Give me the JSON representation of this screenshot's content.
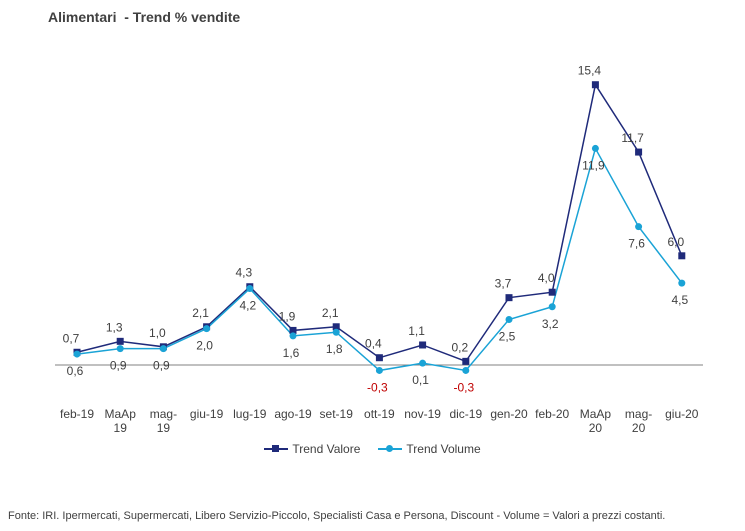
{
  "title": "Alimentari  - Trend % vendite",
  "footer": "Fonte: IRI. Ipermercati, Supermercati, Libero Servizio-Piccolo,  Specialisti Casa e Persona, Discount -  Volume =  Valori a prezzi  costanti.",
  "colors": {
    "valore": "#1f2a7a",
    "volume": "#1aa3d6",
    "negative": "#c00000",
    "text": "#404040",
    "axis": "#808080"
  },
  "chart_data": {
    "type": "line",
    "categories": [
      "feb-19",
      "MaAp 19",
      "mag-19",
      "giu-19",
      "lug-19",
      "ago-19",
      "set-19",
      "ott-19",
      "nov-19",
      "dic-19",
      "gen-20",
      "feb-20",
      "MaAp 20",
      "mag-20",
      "giu-20"
    ],
    "category_lines": [
      [
        "feb-19"
      ],
      [
        "MaAp",
        "19"
      ],
      [
        "mag-",
        "19"
      ],
      [
        "giu-19"
      ],
      [
        "lug-19"
      ],
      [
        "ago-19"
      ],
      [
        "set-19"
      ],
      [
        "ott-19"
      ],
      [
        "nov-19"
      ],
      [
        "dic-19"
      ],
      [
        "gen-20"
      ],
      [
        "feb-20"
      ],
      [
        "MaAp",
        "20"
      ],
      [
        "mag-",
        "20"
      ],
      [
        "giu-20"
      ]
    ],
    "series": [
      {
        "name": "Trend Valore",
        "marker": "square",
        "values": [
          0.7,
          1.3,
          1.0,
          2.1,
          4.3,
          1.9,
          2.1,
          0.4,
          1.1,
          0.2,
          3.7,
          4.0,
          15.4,
          11.7,
          6.0
        ],
        "labels": [
          "0,7",
          "1,3",
          "1,0",
          "2,1",
          "4,3",
          "1,9",
          "2,1",
          "0,4",
          "1,1",
          "0,2",
          "3,7",
          "4,0",
          "15,4",
          "11,7",
          "6,0"
        ]
      },
      {
        "name": "Trend Volume",
        "marker": "circle",
        "values": [
          0.6,
          0.9,
          0.9,
          2.0,
          4.2,
          1.6,
          1.8,
          -0.3,
          0.1,
          -0.3,
          2.5,
          3.2,
          11.9,
          7.6,
          4.5
        ],
        "labels": [
          "0,6",
          "0,9",
          "0,9",
          "2,0",
          "4,2",
          "1,6",
          "1,8",
          "-0,3",
          "0,1",
          "-0,3",
          "2,5",
          "3,2",
          "11,9",
          "7,6",
          "4,5"
        ]
      }
    ],
    "legend_position": "bottom",
    "grid": false
  }
}
